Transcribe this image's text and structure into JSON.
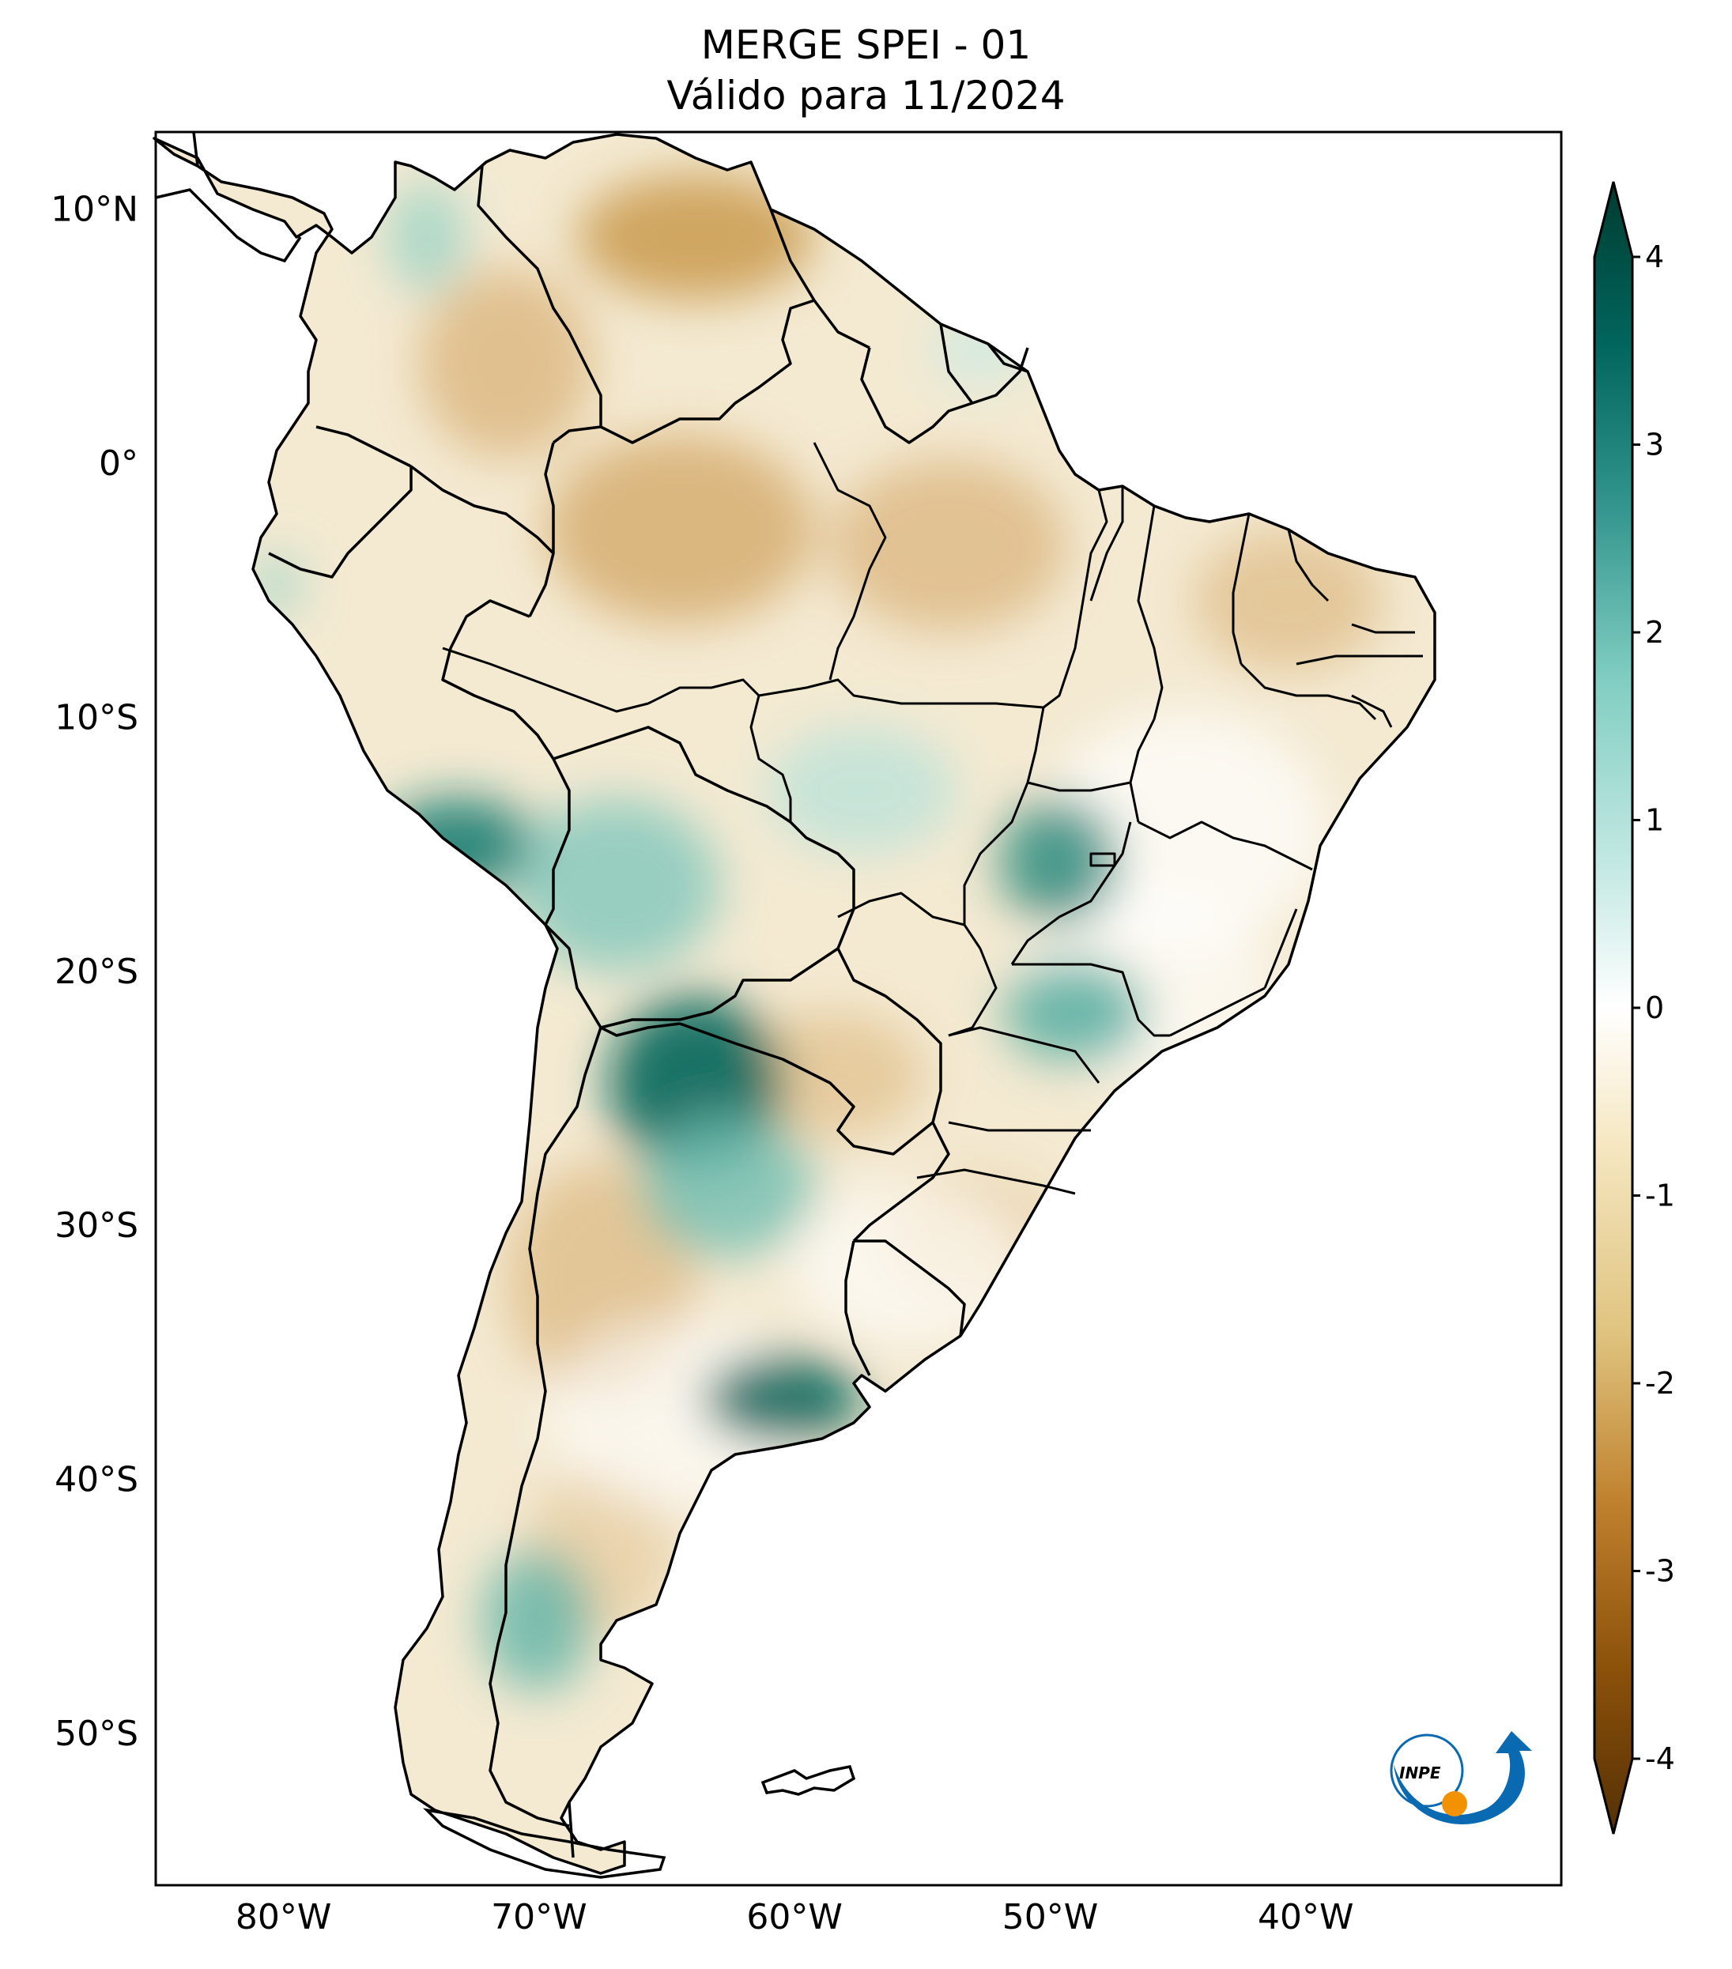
{
  "title": {
    "line1": "MERGE   SPEI - 01",
    "line2": "Válido para 11/2024"
  },
  "axes": {
    "lat_labels": [
      "10°N",
      "0°",
      "10°S",
      "20°S",
      "30°S",
      "40°S",
      "50°S"
    ],
    "lat_values": [
      10,
      0,
      -10,
      -20,
      -30,
      -40,
      -50
    ],
    "lon_labels": [
      "80°W",
      "70°W",
      "60°W",
      "50°W",
      "40°W"
    ],
    "lon_values": [
      -80,
      -70,
      -60,
      -50,
      -40
    ],
    "lon_range": [
      -85,
      -30
    ],
    "lat_range": [
      -56,
      13
    ]
  },
  "colorbar": {
    "ticks": [
      "4",
      "3",
      "2",
      "1",
      "0",
      "-1",
      "-2",
      "-3",
      "-4"
    ],
    "tick_values": [
      4,
      3,
      2,
      1,
      0,
      -1,
      -2,
      -3,
      -4
    ],
    "range": [
      -4,
      4
    ],
    "colormap": "BrBG",
    "extend": "both",
    "colors": [
      "#543005",
      "#8c510a",
      "#bf812d",
      "#dfc27d",
      "#f6e8c3",
      "#ffffff",
      "#c7eae5",
      "#80cdc1",
      "#35978f",
      "#01665e",
      "#003c30"
    ]
  },
  "logo": {
    "text": "INPE",
    "accent": "#0a6ab1",
    "dot": "#f39200"
  }
}
